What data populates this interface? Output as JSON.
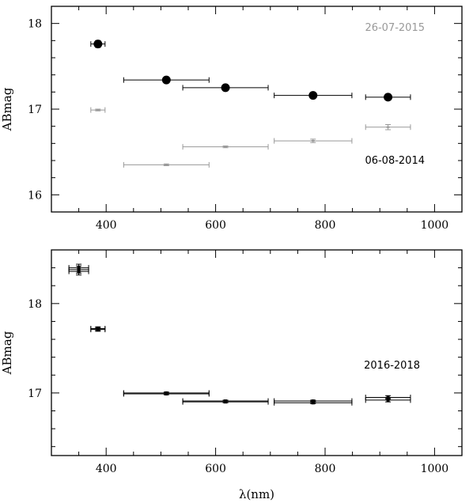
{
  "chart_data": [
    {
      "type": "scatter",
      "ylabel": "ABmag",
      "xlabel": "",
      "xlim": [
        300,
        1050
      ],
      "ylim": [
        18.2,
        15.8
      ],
      "y_inverted": true,
      "x_ticks": [
        400,
        600,
        800,
        1000
      ],
      "x_tick_labels": [
        "400",
        "600",
        "800",
        "1000"
      ],
      "y_ticks": [
        16,
        17,
        18
      ],
      "y_tick_labels": [
        "16",
        "17",
        "18"
      ],
      "annotations": [
        {
          "text": "26-07-2015",
          "color": "#999999",
          "near": "top-right"
        },
        {
          "text": "06-08-2014",
          "color": "#000000",
          "near": "right-middle"
        }
      ],
      "series": [
        {
          "name": "",
          "color": "#999999",
          "marker": "tick",
          "points": [
            {
              "x": 385,
              "y": 16.99,
              "xerr": 13,
              "yerr": 0.01
            },
            {
              "x": 510,
              "y": 16.35,
              "xerr": 78,
              "yerr": 0.01
            },
            {
              "x": 618,
              "y": 16.56,
              "xerr": 78,
              "yerr": 0.01
            },
            {
              "x": 778,
              "y": 16.63,
              "xerr": 71,
              "yerr": 0.02
            },
            {
              "x": 915,
              "y": 16.79,
              "xerr": 41,
              "yerr": 0.03
            }
          ]
        },
        {
          "name": "",
          "color": "#000000",
          "marker": "circle",
          "points": [
            {
              "x": 385,
              "y": 17.76,
              "xerr": 13,
              "yerr": 0.04
            },
            {
              "x": 510,
              "y": 17.34,
              "xerr": 78,
              "yerr": 0.02
            },
            {
              "x": 618,
              "y": 17.25,
              "xerr": 78,
              "yerr": 0.02
            },
            {
              "x": 778,
              "y": 17.16,
              "xerr": 71,
              "yerr": 0.02
            },
            {
              "x": 915,
              "y": 17.14,
              "xerr": 41,
              "yerr": 0.02
            }
          ]
        }
      ]
    },
    {
      "type": "scatter",
      "ylabel": "ABmag",
      "xlabel": "λ(nm)",
      "xlim": [
        300,
        1050
      ],
      "ylim": [
        18.6,
        16.3
      ],
      "y_inverted": true,
      "x_ticks": [
        400,
        600,
        800,
        1000
      ],
      "x_tick_labels": [
        "400",
        "600",
        "800",
        "1000"
      ],
      "y_ticks": [
        17,
        18
      ],
      "y_tick_labels": [
        "17",
        "18"
      ],
      "annotations": [
        {
          "text": "2016-2018",
          "color": "#000000",
          "near": "right-middle"
        }
      ],
      "series": [
        {
          "name": "",
          "color": "#000000",
          "marker": "square",
          "points": [
            {
              "x": 350,
              "y": 18.36,
              "xerr": 18,
              "yerr": 0.04
            },
            {
              "x": 350,
              "y": 18.38,
              "xerr": 18,
              "yerr": 0.04
            },
            {
              "x": 350,
              "y": 18.4,
              "xerr": 18,
              "yerr": 0.04
            },
            {
              "x": 385,
              "y": 17.71,
              "xerr": 13,
              "yerr": 0.02
            },
            {
              "x": 385,
              "y": 17.72,
              "xerr": 13,
              "yerr": 0.02
            },
            {
              "x": 510,
              "y": 16.99,
              "xerr": 78,
              "yerr": 0.01
            },
            {
              "x": 510,
              "y": 17.0,
              "xerr": 78,
              "yerr": 0.01
            },
            {
              "x": 618,
              "y": 16.9,
              "xerr": 78,
              "yerr": 0.01
            },
            {
              "x": 618,
              "y": 16.91,
              "xerr": 78,
              "yerr": 0.01
            },
            {
              "x": 778,
              "y": 16.89,
              "xerr": 71,
              "yerr": 0.01
            },
            {
              "x": 778,
              "y": 16.91,
              "xerr": 71,
              "yerr": 0.01
            },
            {
              "x": 915,
              "y": 16.92,
              "xerr": 41,
              "yerr": 0.02
            },
            {
              "x": 915,
              "y": 16.95,
              "xerr": 41,
              "yerr": 0.02
            }
          ]
        }
      ]
    }
  ]
}
